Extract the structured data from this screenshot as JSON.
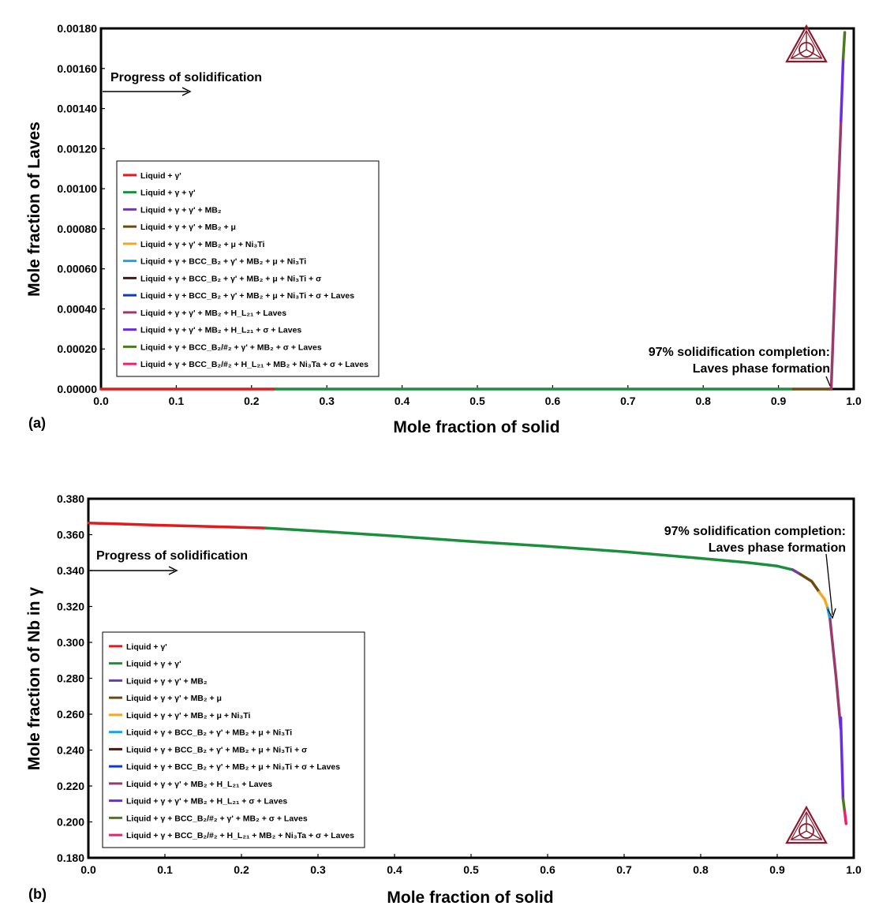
{
  "chart_data": [
    {
      "type": "line",
      "panel_label": "(a)",
      "xlabel": "Mole fraction of solid",
      "ylabel": "Mole fraction of Laves",
      "xlim": [
        0.0,
        1.0
      ],
      "ylim": [
        0.0,
        0.0018
      ],
      "x_ticks": [
        "0.0",
        "0.1",
        "0.2",
        "0.3",
        "0.4",
        "0.5",
        "0.6",
        "0.7",
        "0.8",
        "0.9",
        "1.0"
      ],
      "y_ticks": [
        "0.00000",
        "0.00020",
        "0.00040",
        "0.00060",
        "0.00080",
        "0.00100",
        "0.00120",
        "0.00140",
        "0.00160",
        "0.00180"
      ],
      "grid": false,
      "legend_position": "lower-left",
      "annotations": {
        "progress": "Progress of solidification",
        "completion_line1": "97% solidification completion:",
        "completion_line2": "Laves phase formation"
      },
      "legend": [
        {
          "label": "Liquid + γ'",
          "color": "#e31a1c"
        },
        {
          "label": "Liquid + γ + γ'",
          "color": "#1a8f3c"
        },
        {
          "label": "Liquid + γ + γ' + MB₂",
          "color": "#6a3da8"
        },
        {
          "label": "Liquid + γ + γ' + MB₂ + μ",
          "color": "#6b4a12"
        },
        {
          "label": "Liquid + γ + γ' + MB₂ + μ + Ni₃Ti",
          "color": "#f5a623"
        },
        {
          "label": "Liquid + γ + BCC_B₂ + γ' + MB₂ + μ + Ni₃Ti",
          "color": "#1fa3e8"
        },
        {
          "label": "Liquid + γ + BCC_B₂ + γ' + MB₂ + μ + Ni₃Ti + σ",
          "color": "#4a1a12"
        },
        {
          "label": "Liquid + γ + BCC_B₂ + γ' + MB₂ + μ + Ni₃Ti + σ + Laves",
          "color": "#1236d4"
        },
        {
          "label": "Liquid + γ + γ' + MB₂ + H_L₂₁ + Laves",
          "color": "#9b3a6a"
        },
        {
          "label": "Liquid + γ + γ' + MB₂ + H_L₂₁ + σ + Laves",
          "color": "#6a2be8"
        },
        {
          "label": "Liquid + γ + BCC_B₂/#₂ + γ' + MB₂ + σ + Laves",
          "color": "#4d7a1e"
        },
        {
          "label": "Liquid + γ + BCC_B₂/#₂ + H_L₂₁ + MB₂ + Ni₃Ta + σ + Laves",
          "color": "#f0206e"
        }
      ],
      "series": [
        {
          "color": "#e31a1c",
          "x": [
            0.0,
            0.232
          ],
          "y": [
            0.0,
            0.0
          ]
        },
        {
          "color": "#1a8f3c",
          "x": [
            0.232,
            0.92
          ],
          "y": [
            0.0,
            0.0
          ]
        },
        {
          "color": "#6b4a12",
          "x": [
            0.92,
            0.97
          ],
          "y": [
            0.0,
            0.0
          ]
        },
        {
          "color": "#9b3a6a",
          "x": [
            0.97,
            0.983
          ],
          "y": [
            0.0,
            0.00134
          ]
        },
        {
          "color": "#6a2be8",
          "x": [
            0.983,
            0.986
          ],
          "y": [
            0.00134,
            0.00165
          ]
        },
        {
          "color": "#4d7a1e",
          "x": [
            0.986,
            0.988
          ],
          "y": [
            0.00165,
            0.00178
          ]
        }
      ]
    },
    {
      "type": "line",
      "panel_label": "(b)",
      "xlabel": "Mole fraction of solid",
      "ylabel": "Mole fraction of Nb in γ",
      "xlim": [
        0.0,
        1.0
      ],
      "ylim": [
        0.18,
        0.38
      ],
      "x_ticks": [
        "0.0",
        "0.1",
        "0.2",
        "0.3",
        "0.4",
        "0.5",
        "0.6",
        "0.7",
        "0.8",
        "0.9",
        "1.0"
      ],
      "y_ticks": [
        "0.180",
        "0.200",
        "0.220",
        "0.240",
        "0.260",
        "0.280",
        "0.300",
        "0.320",
        "0.340",
        "0.360",
        "0.380"
      ],
      "grid": false,
      "legend_position": "lower-left",
      "annotations": {
        "progress": "Progress of solidification",
        "completion_line1": "97% solidification completion:",
        "completion_line2": "Laves phase formation"
      },
      "legend": [
        {
          "label": "Liquid + γ'",
          "color": "#e31a1c"
        },
        {
          "label": "Liquid + γ + γ'",
          "color": "#1a8f3c"
        },
        {
          "label": "Liquid + γ + γ' + MB₂",
          "color": "#6a3da8"
        },
        {
          "label": "Liquid + γ + γ' + MB₂ + μ",
          "color": "#6b4a12"
        },
        {
          "label": "Liquid + γ + γ' + MB₂ + μ + Ni₃Ti",
          "color": "#f5a623"
        },
        {
          "label": "Liquid + γ + BCC_B₂ + γ' + MB₂ + μ + Ni₃Ti",
          "color": "#1fa3e8"
        },
        {
          "label": "Liquid + γ + BCC_B₂ + γ' + MB₂ + μ + Ni₃Ti + σ",
          "color": "#4a1a12"
        },
        {
          "label": "Liquid + γ + BCC_B₂ + γ' + MB₂ + μ + Ni₃Ti + σ + Laves",
          "color": "#1236d4"
        },
        {
          "label": "Liquid + γ + γ' + MB₂ + H_L₂₁ + Laves",
          "color": "#9b3a6a"
        },
        {
          "label": "Liquid + γ + γ' + MB₂ + H_L₂₁ + σ + Laves",
          "color": "#6a2be8"
        },
        {
          "label": "Liquid + γ + BCC_B₂/#₂ + γ' + MB₂ + σ + Laves",
          "color": "#4d7a1e"
        },
        {
          "label": "Liquid + γ + BCC_B₂/#₂ + H_L₂₁ + MB₂ + Ni₃Ta + σ + Laves",
          "color": "#f0206e"
        }
      ],
      "series": [
        {
          "color": "#e31a1c",
          "x": [
            0.0,
            0.1,
            0.232
          ],
          "y": [
            0.3665,
            0.3652,
            0.3637
          ]
        },
        {
          "color": "#1a8f3c",
          "x": [
            0.232,
            0.3,
            0.4,
            0.5,
            0.6,
            0.7,
            0.8,
            0.86,
            0.9,
            0.92
          ],
          "y": [
            0.3637,
            0.362,
            0.3592,
            0.3562,
            0.3535,
            0.3505,
            0.3468,
            0.3445,
            0.3425,
            0.3405
          ]
        },
        {
          "color": "#6a3da8",
          "x": [
            0.92,
            0.93
          ],
          "y": [
            0.3405,
            0.338
          ]
        },
        {
          "color": "#6b4a12",
          "x": [
            0.93,
            0.945,
            0.955
          ],
          "y": [
            0.338,
            0.334,
            0.328
          ]
        },
        {
          "color": "#f5a623",
          "x": [
            0.955,
            0.962,
            0.966
          ],
          "y": [
            0.328,
            0.324,
            0.319
          ]
        },
        {
          "color": "#1fa3e8",
          "x": [
            0.966,
            0.969
          ],
          "y": [
            0.319,
            0.313
          ]
        },
        {
          "color": "#9b3a6a",
          "x": [
            0.969,
            0.977,
            0.983
          ],
          "y": [
            0.313,
            0.28,
            0.252
          ]
        },
        {
          "color": "#6a2be8",
          "x": [
            0.983,
            0.986
          ],
          "y": [
            0.258,
            0.213
          ]
        },
        {
          "color": "#4d7a1e",
          "x": [
            0.986,
            0.988
          ],
          "y": [
            0.213,
            0.206
          ]
        },
        {
          "color": "#f0206e",
          "x": [
            0.988,
            0.99
          ],
          "y": [
            0.206,
            0.199
          ]
        }
      ]
    }
  ]
}
